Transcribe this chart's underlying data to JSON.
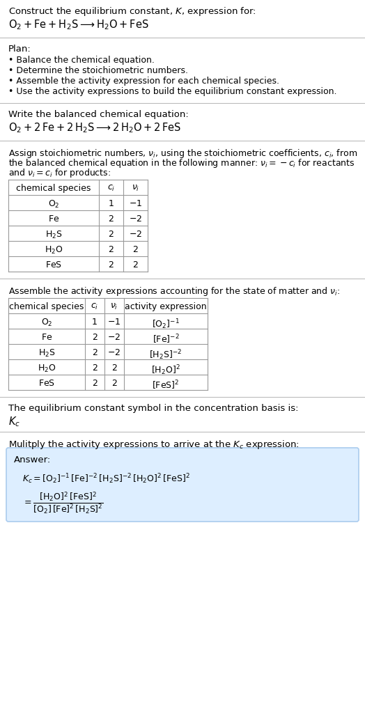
{
  "title_line1": "Construct the equilibrium constant, $K$, expression for:",
  "title_line2": "$\\mathrm{O_2 + Fe + H_2S} \\longrightarrow \\mathrm{H_2O + FeS}$",
  "plan_header": "Plan:",
  "plan_items": [
    "\\textbf{\\bullet} Balance the chemical equation.",
    "\\textbf{\\bullet} Determine the stoichiometric numbers.",
    "\\textbf{\\bullet} Assemble the activity expression for each chemical species.",
    "\\textbf{\\bullet} Use the activity expressions to build the equilibrium constant expression."
  ],
  "balanced_header": "Write the balanced chemical equation:",
  "balanced_eq": "$\\mathrm{O_2 + 2\\,Fe + 2\\,H_2S} \\longrightarrow \\mathrm{2\\,H_2O + 2\\,FeS}$",
  "stoich_header": "Assign stoichiometric numbers, $\\nu_i$, using the stoichiometric coefficients, $c_i$, from\nthe balanced chemical equation in the following manner: $\\nu_i = -c_i$ for reactants\nand $\\nu_i = c_i$ for products:",
  "table1_headers": [
    "chemical species",
    "$c_i$",
    "$\\nu_i$"
  ],
  "table1_rows": [
    [
      "$\\mathrm{O_2}$",
      "1",
      "$-1$"
    ],
    [
      "$\\mathrm{Fe}$",
      "2",
      "$-2$"
    ],
    [
      "$\\mathrm{H_2S}$",
      "2",
      "$-2$"
    ],
    [
      "$\\mathrm{H_2O}$",
      "2",
      "$2$"
    ],
    [
      "$\\mathrm{FeS}$",
      "2",
      "$2$"
    ]
  ],
  "activity_header": "Assemble the activity expressions accounting for the state of matter and $\\nu_i$:",
  "table2_headers": [
    "chemical species",
    "$c_i$",
    "$\\nu_i$",
    "activity expression"
  ],
  "table2_rows": [
    [
      "$\\mathrm{O_2}$",
      "1",
      "$-1$",
      "$[\\mathrm{O_2}]^{-1}$"
    ],
    [
      "$\\mathrm{Fe}$",
      "2",
      "$-2$",
      "$[\\mathrm{Fe}]^{-2}$"
    ],
    [
      "$\\mathrm{H_2S}$",
      "2",
      "$-2$",
      "$[\\mathrm{H_2S}]^{-2}$"
    ],
    [
      "$\\mathrm{H_2O}$",
      "2",
      "$2$",
      "$[\\mathrm{H_2O}]^{2}$"
    ],
    [
      "$\\mathrm{FeS}$",
      "2",
      "$2$",
      "$[\\mathrm{FeS}]^{2}$"
    ]
  ],
  "kc_header": "The equilibrium constant symbol in the concentration basis is:",
  "kc_symbol": "$K_c$",
  "multiply_header": "Mulitply the activity expressions to arrive at the $K_c$ expression:",
  "answer_label": "Answer:",
  "answer_eq1": "$K_c = [\\mathrm{O_2}]^{-1}\\,[\\mathrm{Fe}]^{-2}\\,[\\mathrm{H_2S}]^{-2}\\,[\\mathrm{H_2O}]^{2}\\,[\\mathrm{FeS}]^{2}$",
  "answer_eq2": "$= \\dfrac{[\\mathrm{H_2O}]^{2}\\,[\\mathrm{FeS}]^{2}}{[\\mathrm{O_2}]\\,[\\mathrm{Fe}]^{2}\\,[\\mathrm{H_2S}]^{2}}$",
  "bg_color": "#ffffff",
  "text_color": "#000000",
  "table_border_color": "#999999",
  "answer_box_color": "#ddeeff",
  "separator_color": "#cccccc",
  "font_size": 9.5,
  "small_font": 9.0
}
